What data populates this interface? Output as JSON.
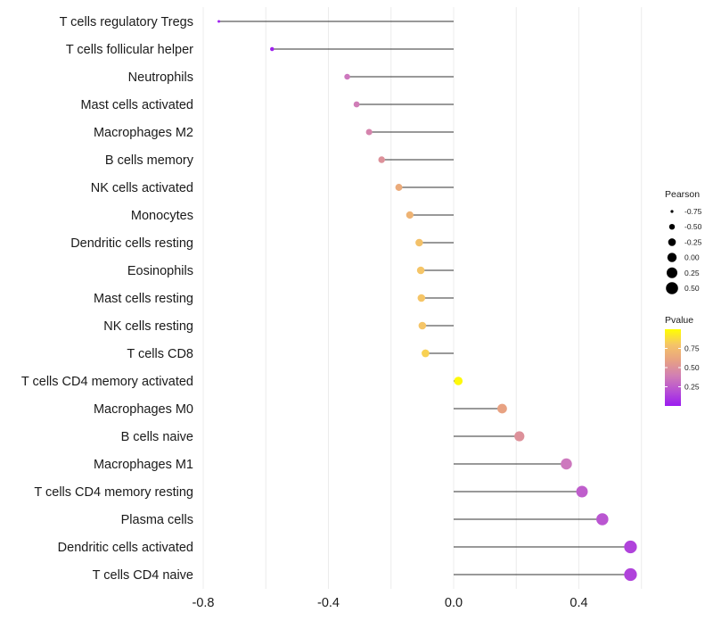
{
  "chart_data": {
    "type": "lollipop",
    "title": "",
    "xlabel": "",
    "ylabel": "",
    "xlim": [
      -0.8,
      0.6
    ],
    "x_ticks": [
      -0.8,
      -0.4,
      0.0,
      0.4
    ],
    "x_tick_labels": [
      "-0.8",
      "-0.4",
      "0.0",
      "0.4"
    ],
    "grid": true,
    "categories": [
      "T cells regulatory  Tregs",
      "T cells follicular helper",
      "Neutrophils",
      "Mast cells activated",
      "Macrophages M2",
      "B cells memory",
      "NK cells activated",
      "Monocytes",
      "Dendritic cells resting",
      "Eosinophils",
      "Mast cells resting",
      "NK cells resting",
      "T cells CD8",
      "T cells CD4 memory activated",
      "Macrophages M0",
      "B cells naive",
      "Macrophages M1",
      "T cells CD4 memory resting",
      "Plasma cells",
      "Dendritic cells activated",
      "T cells CD4 naive"
    ],
    "values": [
      -0.75,
      -0.58,
      -0.34,
      -0.31,
      -0.27,
      -0.23,
      -0.175,
      -0.14,
      -0.11,
      -0.105,
      -0.103,
      -0.1,
      -0.09,
      0.015,
      0.155,
      0.21,
      0.36,
      0.41,
      0.475,
      0.565,
      0.565
    ],
    "pvalues": [
      0.02,
      0.02,
      0.35,
      0.38,
      0.42,
      0.5,
      0.65,
      0.7,
      0.78,
      0.8,
      0.8,
      0.8,
      0.85,
      0.98,
      0.6,
      0.5,
      0.35,
      0.25,
      0.22,
      0.15,
      0.15
    ],
    "legends": {
      "size": {
        "title": "Pearson",
        "labels": [
          "-0.75",
          "-0.50",
          "-0.25",
          "0.00",
          "0.25",
          "0.50"
        ],
        "values": [
          -0.75,
          -0.5,
          -0.25,
          0.0,
          0.25,
          0.5
        ]
      },
      "color": {
        "title": "Pvalue",
        "labels": [
          "0.75",
          "0.50",
          "0.25"
        ],
        "values": [
          0.75,
          0.5,
          0.25
        ],
        "range": [
          0.0,
          1.0
        ],
        "low_color": "#9b1cf0",
        "high_color": "#ffff00"
      },
      "placement": "right"
    }
  },
  "colors": {
    "stem": "#333333",
    "grid": "#ececec",
    "legend_dot": "#000000"
  }
}
